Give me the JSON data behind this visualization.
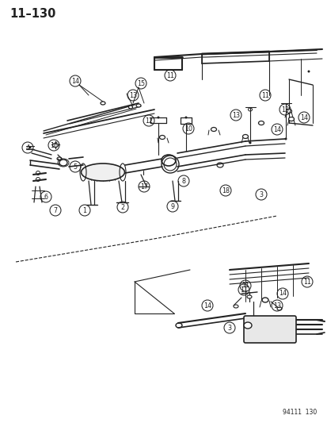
{
  "title": "11–130",
  "footer": "94111  130",
  "bg_color": "#ffffff",
  "line_color": "#222222",
  "fig_width": 4.14,
  "fig_height": 5.33,
  "dpi": 100
}
